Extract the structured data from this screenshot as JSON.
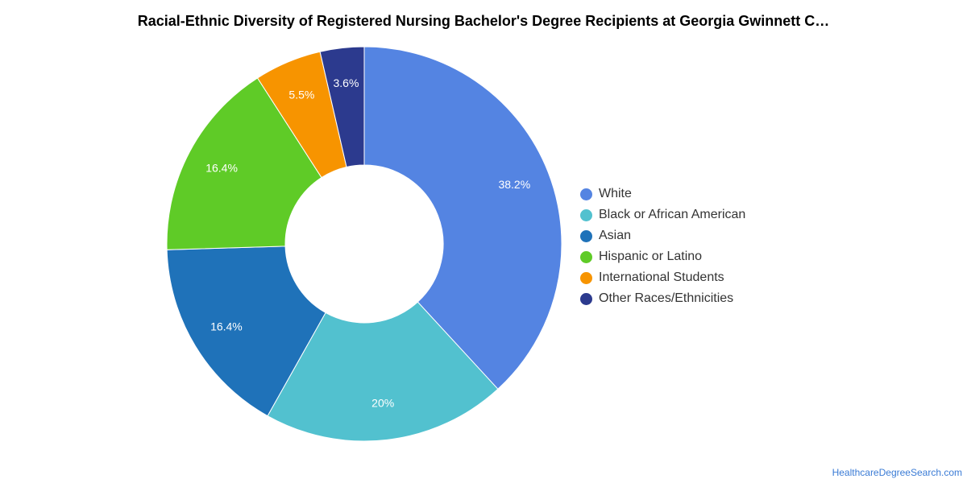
{
  "chart_data": {
    "type": "pie",
    "title": "Racial-Ethnic Diversity of Registered Nursing Bachelor's Degree Recipients at Georgia Gwinnett C…",
    "donut": true,
    "legend_position": "right",
    "slices": [
      {
        "label": "White",
        "value": 38.2,
        "value_label": "38.2%",
        "color": "#5484e2"
      },
      {
        "label": "Black or African American",
        "value": 20,
        "value_label": "20%",
        "color": "#52c1cf"
      },
      {
        "label": "Asian",
        "value": 16.4,
        "value_label": "16.4%",
        "color": "#1f72b9"
      },
      {
        "label": "Hispanic or Latino",
        "value": 16.4,
        "value_label": "16.4%",
        "color": "#5fcb27"
      },
      {
        "label": "International Students",
        "value": 5.5,
        "value_label": "5.5%",
        "color": "#f79400"
      },
      {
        "label": "Other Races/Ethnicities",
        "value": 3.6,
        "value_label": "3.6%",
        "color": "#2c3a8e"
      }
    ]
  },
  "source_label": "HealthcareDegreeSearch.com"
}
